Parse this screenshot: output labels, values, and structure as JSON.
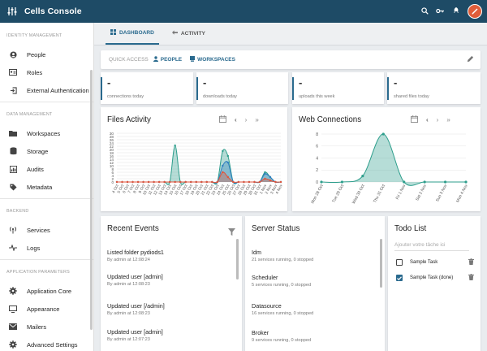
{
  "app": {
    "title": "Cells Console"
  },
  "colors": {
    "topbar": "#1e4b66",
    "accent": "#2a6a8e",
    "chart_teal": "#2e9e8c",
    "chart_red": "#e0553d",
    "chart_blue": "#2f7fc1"
  },
  "sidebar": {
    "sections": [
      {
        "title": "IDENTITY MANAGEMENT",
        "items": [
          {
            "label": "People",
            "icon": "person-icon"
          },
          {
            "label": "Roles",
            "icon": "id-card-icon"
          },
          {
            "label": "External Authentication",
            "icon": "login-icon"
          }
        ]
      },
      {
        "title": "DATA MANAGEMENT",
        "items": [
          {
            "label": "Workspaces",
            "icon": "folder-icon"
          },
          {
            "label": "Storage",
            "icon": "database-icon"
          },
          {
            "label": "Audits",
            "icon": "audit-icon"
          },
          {
            "label": "Metadata",
            "icon": "tag-icon"
          }
        ]
      },
      {
        "title": "BACKEND",
        "items": [
          {
            "label": "Services",
            "icon": "antenna-icon"
          },
          {
            "label": "Logs",
            "icon": "pulse-icon"
          }
        ]
      },
      {
        "title": "APPLICATION PARAMETERS",
        "items": [
          {
            "label": "Application Core",
            "icon": "gear-icon"
          },
          {
            "label": "Appearance",
            "icon": "monitor-icon"
          },
          {
            "label": "Mailers",
            "icon": "mail-icon"
          },
          {
            "label": "Advanced Settings",
            "icon": "settings-icon"
          }
        ]
      }
    ]
  },
  "tabs": [
    {
      "label": "DASHBOARD",
      "icon": "grid-icon"
    },
    {
      "label": "ACTIVITY",
      "icon": "arrow-left-icon"
    }
  ],
  "quick_access": {
    "label": "QUICK ACCESS",
    "links": [
      {
        "label": "PEOPLE",
        "icon": "person-icon"
      },
      {
        "label": "WORKSPACES",
        "icon": "workspace-icon"
      }
    ]
  },
  "stats": [
    {
      "value": "-",
      "label": "connections today"
    },
    {
      "value": "-",
      "label": "downloads today"
    },
    {
      "value": "-",
      "label": "uploads this week"
    },
    {
      "value": "-",
      "label": "shared files today"
    }
  ],
  "files_activity": {
    "title": "Files Activity"
  },
  "web_connections": {
    "title": "Web Connections"
  },
  "chart_data": [
    {
      "type": "area",
      "title": "Files Activity",
      "categories": [
        "4 Oct",
        "5 Oct",
        "6 Oct",
        "7 Oct",
        "8 Oct",
        "9 Oct",
        "10 Oct",
        "11 Oct",
        "12 Oct",
        "13 Oct",
        "14 Oct",
        "15 Oct",
        "16 Oct",
        "17 Oct",
        "18 Oct",
        "19 Oct",
        "20 Oct",
        "21 Oct",
        "22 Oct",
        "23 Oct",
        "24 Oct",
        "25 Oct",
        "26 Oct",
        "27 Oct",
        "28 Oct",
        "29 Oct",
        "30 Oct",
        "31 Oct",
        "1 Nov",
        "2 Nov",
        "3 Nov",
        "4 Nov"
      ],
      "ylim": [
        0,
        30
      ],
      "yticks": [
        0,
        2,
        4,
        6,
        8,
        10,
        12,
        14,
        16,
        18,
        20,
        22,
        24,
        26,
        28,
        30
      ],
      "series": [
        {
          "color": "#2e9e8c",
          "values": [
            0,
            0,
            0,
            0,
            0,
            0,
            0,
            0,
            0,
            0,
            0,
            22.5,
            0,
            0,
            0,
            0,
            0,
            0,
            0,
            0,
            19,
            16,
            0,
            0,
            0,
            0,
            0,
            0,
            6,
            3,
            0,
            0
          ]
        },
        {
          "color": "#2f7fc1",
          "values": [
            0,
            0,
            0,
            0,
            0,
            0,
            0,
            0,
            0,
            0,
            0,
            0,
            0,
            0,
            0,
            0,
            0,
            0,
            0,
            0,
            10,
            12,
            0,
            0,
            0,
            0,
            0,
            0,
            5,
            3,
            0,
            0
          ]
        },
        {
          "color": "#e0553d",
          "values": [
            0,
            0,
            0,
            0,
            0,
            0,
            0,
            0,
            0,
            0,
            0,
            0,
            0,
            0,
            0,
            0,
            0,
            0,
            0,
            0,
            6,
            3,
            0,
            0,
            0,
            0,
            0,
            0,
            2,
            1,
            0,
            0
          ]
        }
      ]
    },
    {
      "type": "area",
      "title": "Web Connections",
      "categories": [
        "Mon 28 Oct",
        "Tue 29 Oct",
        "Wed 30 Oct",
        "Thu 31 Oct",
        "Fri 1 Nov",
        "Sat 2 Nov",
        "Sun 3 Nov",
        "Mon 4 Nov"
      ],
      "ylim": [
        0,
        8
      ],
      "yticks": [
        0,
        2,
        4,
        6,
        8
      ],
      "series": [
        {
          "color": "#2e9e8c",
          "values": [
            0,
            0,
            1,
            8,
            0,
            0,
            0,
            0
          ]
        }
      ]
    }
  ],
  "recent_events": {
    "title": "Recent Events",
    "items": [
      {
        "title": "Listed folder pydiods1",
        "sub": "By admin at 12:08:24"
      },
      {
        "title": "Updated user [admin]",
        "sub": "By admin at 12:08:23"
      },
      {
        "title": "Updated user [/admin]",
        "sub": "By admin at 12:08:23"
      },
      {
        "title": "Updated user [admin]",
        "sub": "By admin at 12:07:23"
      }
    ]
  },
  "server_status": {
    "title": "Server Status",
    "items": [
      {
        "title": "Idm",
        "sub": "21 services running, 0 stopped"
      },
      {
        "title": "Scheduler",
        "sub": "5 services running, 0 stopped"
      },
      {
        "title": "Datasource",
        "sub": "16 services running, 0 stopped"
      },
      {
        "title": "Broker",
        "sub": "9 services running, 0 stopped"
      }
    ]
  },
  "todo": {
    "title": "Todo List",
    "placeholder": "Ajouter votre tâche ici",
    "items": [
      {
        "label": "Sample Task",
        "done": false
      },
      {
        "label": "Sample Task (done)",
        "done": true
      }
    ]
  }
}
